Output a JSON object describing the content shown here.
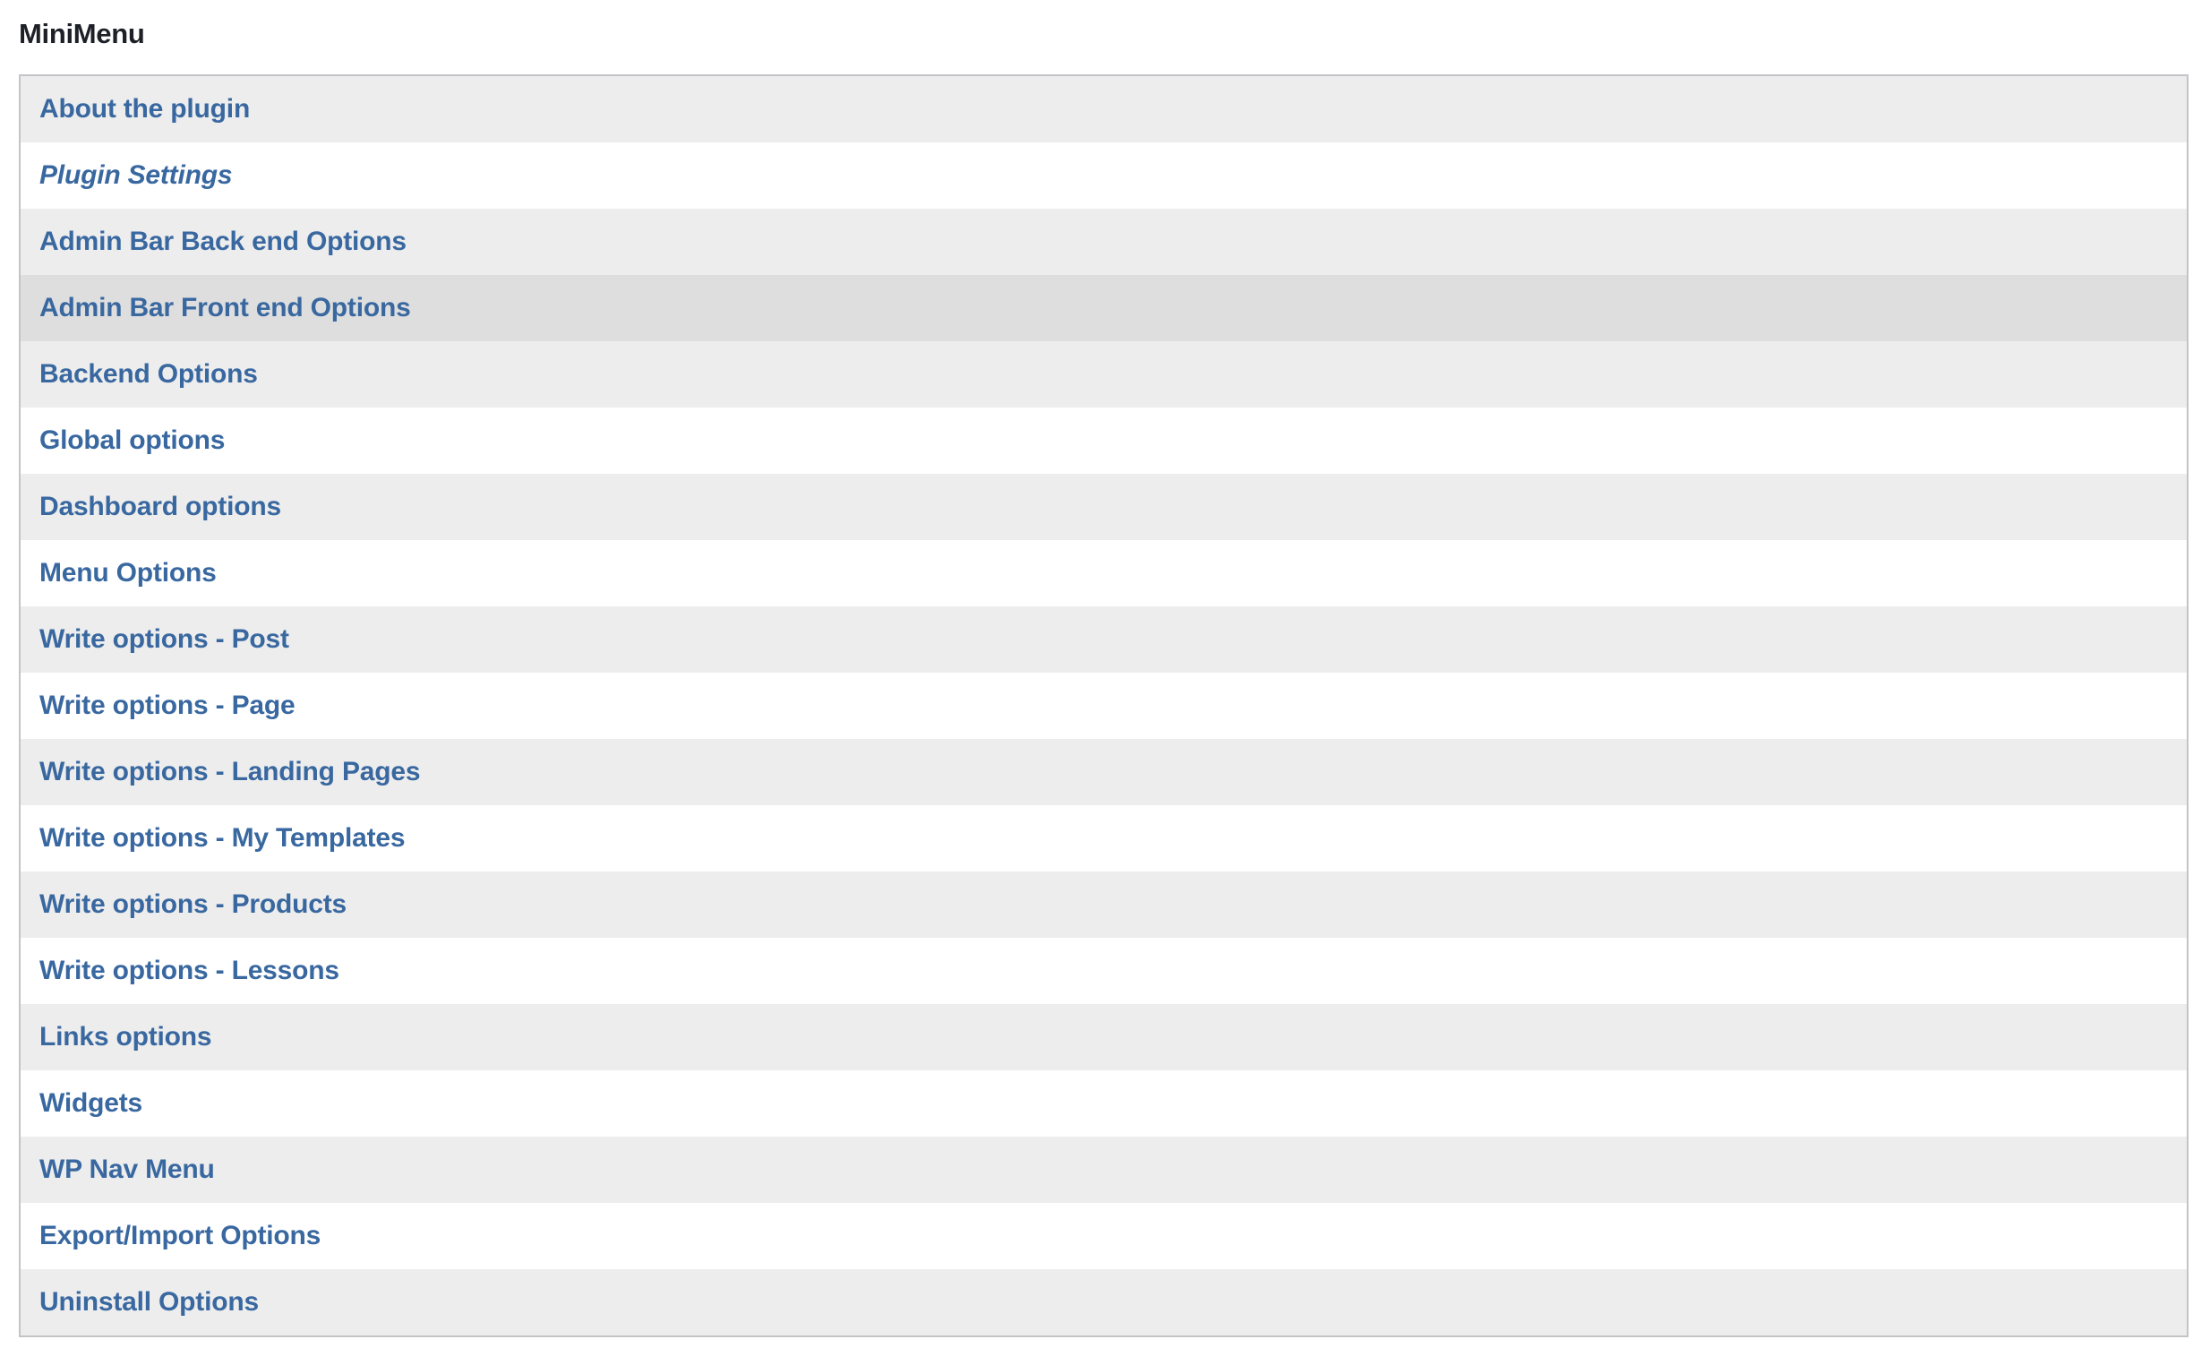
{
  "page": {
    "title": "MiniMenu"
  },
  "colors": {
    "link": "#3968a0",
    "title_text": "#1d2127",
    "row_stripe": "#ededed",
    "row_highlight": "#dedede",
    "row_plain": "#ffffff",
    "table_border": "#c3c4c7",
    "page_background": "#ffffff"
  },
  "menu": {
    "items": [
      {
        "label": "About the plugin"
      },
      {
        "label": "Plugin Settings",
        "italic": true
      },
      {
        "label": "Admin Bar Back end Options"
      },
      {
        "label": "Admin Bar Front end Options",
        "highlighted": true
      },
      {
        "label": "Backend Options"
      },
      {
        "label": "Global options"
      },
      {
        "label": "Dashboard options"
      },
      {
        "label": "Menu Options"
      },
      {
        "label": "Write options - Post"
      },
      {
        "label": "Write options - Page"
      },
      {
        "label": "Write options - Landing Pages"
      },
      {
        "label": "Write options - My Templates"
      },
      {
        "label": "Write options - Products"
      },
      {
        "label": "Write options - Lessons"
      },
      {
        "label": "Links options"
      },
      {
        "label": "Widgets"
      },
      {
        "label": "WP Nav Menu"
      },
      {
        "label": "Export/Import Options"
      },
      {
        "label": "Uninstall Options"
      }
    ]
  }
}
